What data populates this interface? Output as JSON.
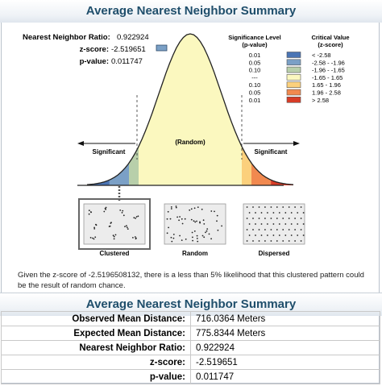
{
  "title": "Average Nearest Neighbor Summary",
  "results": {
    "ratio_label": "Nearest Neighbor Ratio:",
    "ratio_value": "0.922924",
    "z_label": "z-score:",
    "z_value": "-2.519651",
    "p_label": "p-value:",
    "p_value": "0.011747",
    "marker_color": "#7ba0c6"
  },
  "legend": {
    "sig_header": [
      "Significance Level",
      "(p-value)"
    ],
    "crit_header": [
      "Critical Value",
      "(z-score)"
    ],
    "rows": [
      {
        "p": "0.01",
        "z": "< -2.58",
        "color": "#4a74b4"
      },
      {
        "p": "0.05",
        "z": "-2.58 - -1.96",
        "color": "#7ba0c6"
      },
      {
        "p": "0.10",
        "z": "-1.96 - -1.65",
        "color": "#b8cfaa"
      },
      {
        "p": "---",
        "z": "-1.65 - 1.65",
        "color": "#fbf8bf"
      },
      {
        "p": "0.10",
        "z": "1.65 - 1.96",
        "color": "#fbd07c"
      },
      {
        "p": "0.05",
        "z": "1.96 - 2.58",
        "color": "#f1894f"
      },
      {
        "p": "0.01",
        "z": "> 2.58",
        "color": "#d73c27"
      }
    ]
  },
  "curve_labels": {
    "random": "(Random)",
    "significant_left": "Significant",
    "significant_right": "Significant"
  },
  "patterns": [
    {
      "label": "Clustered",
      "selected": true
    },
    {
      "label": "Random",
      "selected": false
    },
    {
      "label": "Dispersed",
      "selected": false
    }
  ],
  "explanation": "Given the z-score of -2.5196508132, there is a less than 5% likelihood that this clustered pattern could be the result of random chance.",
  "table": {
    "title": "Average Nearest Neighbor Summary",
    "rows": [
      {
        "label": "Observed Mean Distance:",
        "value": "716.0364 Meters"
      },
      {
        "label": "Expected Mean Distance:",
        "value": "775.8344 Meters"
      },
      {
        "label": "Nearest Neighbor Ratio:",
        "value": "0.922924"
      },
      {
        "label": "z-score:",
        "value": "-2.519651"
      },
      {
        "label": "p-value:",
        "value": "0.011747"
      }
    ]
  }
}
